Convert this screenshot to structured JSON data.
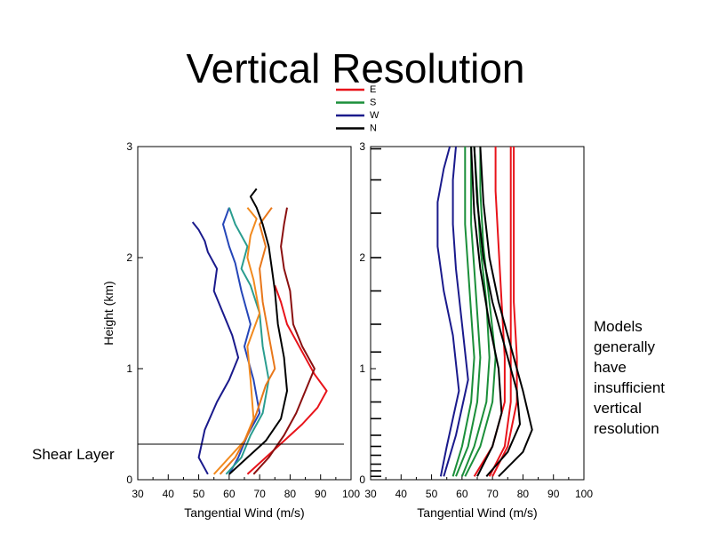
{
  "title": "Vertical Resolution",
  "legend": [
    {
      "label": "E",
      "color": "#e8131a"
    },
    {
      "label": "S",
      "color": "#1b8f3a"
    },
    {
      "label": "W",
      "color": "#1a1a8c"
    },
    {
      "label": "N",
      "color": "#000000"
    }
  ],
  "shear_layer_label": "Shear Layer",
  "models_note": [
    "Models",
    "generally",
    "have",
    "insufficient",
    "vertical",
    "resolution"
  ],
  "chart_data": [
    {
      "type": "line",
      "panel": "observations",
      "xlabel": "Tangential Wind (m/s)",
      "ylabel": "Height (km)",
      "xlim": [
        30,
        100
      ],
      "ylim": [
        0,
        3
      ],
      "xticks": [
        30,
        40,
        50,
        60,
        70,
        80,
        90,
        100
      ],
      "yticks": [
        0,
        1,
        2,
        3
      ],
      "shear_layer_height_km": 0.32,
      "series": [
        {
          "name": "dark blue profile",
          "color": "#1a1a8c",
          "x": [
            53,
            50,
            52,
            56,
            60,
            63,
            61,
            58,
            55,
            56,
            53,
            52,
            50,
            48
          ],
          "y": [
            0.05,
            0.2,
            0.45,
            0.7,
            0.9,
            1.1,
            1.3,
            1.5,
            1.7,
            1.9,
            2.05,
            2.15,
            2.25,
            2.32
          ]
        },
        {
          "name": "blue profile",
          "color": "#2546b8",
          "x": [
            60,
            63,
            66,
            70,
            68,
            65,
            67,
            64,
            62,
            60,
            58,
            60
          ],
          "y": [
            0.05,
            0.2,
            0.4,
            0.6,
            0.9,
            1.2,
            1.4,
            1.7,
            1.95,
            2.1,
            2.3,
            2.45
          ]
        },
        {
          "name": "teal profile",
          "color": "#2a9d8f",
          "x": [
            59,
            64,
            67,
            71,
            73,
            71,
            70,
            67,
            64,
            66,
            62,
            60
          ],
          "y": [
            0.05,
            0.2,
            0.4,
            0.6,
            0.9,
            1.2,
            1.5,
            1.75,
            1.9,
            2.1,
            2.3,
            2.45
          ]
        },
        {
          "name": "orange profile",
          "color": "#f28a1e",
          "x": [
            55,
            60,
            65,
            68,
            67,
            66,
            70,
            68,
            66,
            67,
            69,
            66
          ],
          "y": [
            0.05,
            0.2,
            0.35,
            0.55,
            0.9,
            1.2,
            1.5,
            1.8,
            2.0,
            2.2,
            2.35,
            2.45
          ]
        },
        {
          "name": "orange profile 2",
          "color": "#e8771a",
          "x": [
            57,
            62,
            66,
            69,
            72,
            75,
            73,
            71,
            70,
            72,
            70,
            74
          ],
          "y": [
            0.05,
            0.2,
            0.4,
            0.6,
            0.85,
            1.0,
            1.3,
            1.6,
            1.9,
            2.1,
            2.3,
            2.45
          ]
        },
        {
          "name": "red profile",
          "color": "#e8131a",
          "x": [
            66,
            72,
            78,
            84,
            89,
            92,
            88,
            86,
            83,
            79,
            77,
            75
          ],
          "y": [
            0.05,
            0.2,
            0.35,
            0.5,
            0.65,
            0.8,
            0.95,
            1.05,
            1.2,
            1.4,
            1.6,
            1.75
          ]
        },
        {
          "name": "dark red profile",
          "color": "#8b1010",
          "x": [
            68,
            73,
            78,
            82,
            85,
            88,
            84,
            81,
            80,
            78,
            77,
            78,
            79
          ],
          "y": [
            0.05,
            0.2,
            0.4,
            0.6,
            0.8,
            1.0,
            1.2,
            1.4,
            1.7,
            1.9,
            2.1,
            2.3,
            2.45
          ]
        },
        {
          "name": "black profile",
          "color": "#000000",
          "x": [
            60,
            66,
            72,
            77,
            79,
            78,
            76,
            75,
            74,
            73,
            71,
            69,
            67,
            69
          ],
          "y": [
            0.05,
            0.2,
            0.35,
            0.55,
            0.8,
            1.1,
            1.4,
            1.7,
            1.9,
            2.1,
            2.3,
            2.45,
            2.55,
            2.62
          ]
        }
      ]
    },
    {
      "type": "line",
      "panel": "models",
      "xlabel": "Tangential Wind (m/s)",
      "ylabel": "",
      "xlim": [
        30,
        100
      ],
      "ylim": [
        0,
        3
      ],
      "xticks": [
        30,
        40,
        50,
        60,
        70,
        80,
        90,
        100
      ],
      "yticks": [
        0,
        1,
        2,
        3
      ],
      "model_levels_km": [
        0.03,
        0.08,
        0.14,
        0.22,
        0.3,
        0.4,
        0.55,
        0.7,
        0.9,
        1.15,
        1.4,
        1.7,
        2.0,
        2.4,
        2.7,
        2.98
      ],
      "series": [
        {
          "name": "W model 1",
          "color": "#1a1a8c",
          "x": [
            53,
            55,
            59,
            57,
            54,
            52,
            52,
            54,
            56
          ],
          "y": [
            0.03,
            0.3,
            0.8,
            1.3,
            1.7,
            2.1,
            2.5,
            2.8,
            3.0
          ]
        },
        {
          "name": "W model 2",
          "color": "#1a1a8c",
          "x": [
            54,
            58,
            62,
            60,
            58,
            57,
            57,
            58
          ],
          "y": [
            0.03,
            0.4,
            0.9,
            1.4,
            1.9,
            2.3,
            2.7,
            3.0
          ]
        },
        {
          "name": "S model 1",
          "color": "#1b8f3a",
          "x": [
            57,
            60,
            63,
            64,
            63,
            62,
            61,
            61,
            61
          ],
          "y": [
            0.03,
            0.3,
            0.7,
            1.1,
            1.5,
            1.9,
            2.3,
            2.7,
            3.0
          ]
        },
        {
          "name": "S model 2",
          "color": "#1b8f3a",
          "x": [
            58,
            62,
            65,
            66,
            65,
            64,
            63,
            63,
            63
          ],
          "y": [
            0.03,
            0.3,
            0.7,
            1.1,
            1.5,
            1.9,
            2.3,
            2.7,
            3.0
          ]
        },
        {
          "name": "S model 3",
          "color": "#1b8f3a",
          "x": [
            60,
            64,
            68,
            69,
            68,
            66,
            65,
            64
          ],
          "y": [
            0.03,
            0.3,
            0.7,
            1.1,
            1.6,
            2.1,
            2.6,
            3.0
          ]
        },
        {
          "name": "S model 4",
          "color": "#1b8f3a",
          "x": [
            61,
            66,
            70,
            71,
            69,
            67,
            66,
            66
          ],
          "y": [
            0.03,
            0.3,
            0.7,
            1.1,
            1.6,
            2.1,
            2.6,
            3.0
          ]
        },
        {
          "name": "E model 1",
          "color": "#e8131a",
          "x": [
            69,
            74,
            76,
            76,
            76,
            76,
            76,
            76
          ],
          "y": [
            0.03,
            0.3,
            0.7,
            1.1,
            1.6,
            2.1,
            2.6,
            3.0
          ]
        },
        {
          "name": "E model 2",
          "color": "#e8131a",
          "x": [
            70,
            75,
            78,
            78,
            77,
            77,
            77,
            77
          ],
          "y": [
            0.03,
            0.3,
            0.7,
            1.1,
            1.6,
            2.1,
            2.6,
            3.0
          ]
        },
        {
          "name": "E model 3",
          "color": "#e8131a",
          "x": [
            64,
            70,
            74,
            74,
            73,
            72,
            71,
            71
          ],
          "y": [
            0.03,
            0.3,
            0.7,
            1.1,
            1.6,
            2.1,
            2.6,
            3.0
          ]
        },
        {
          "name": "N model 1",
          "color": "#000000",
          "x": [
            72,
            80,
            83,
            80,
            76,
            72,
            69,
            67,
            66
          ],
          "y": [
            0.03,
            0.25,
            0.45,
            0.8,
            1.2,
            1.6,
            2.0,
            2.5,
            3.0
          ]
        },
        {
          "name": "N model 2",
          "color": "#000000",
          "x": [
            68,
            75,
            79,
            78,
            74,
            70,
            67,
            65,
            64
          ],
          "y": [
            0.03,
            0.25,
            0.5,
            0.8,
            1.2,
            1.6,
            2.0,
            2.5,
            3.0
          ]
        },
        {
          "name": "N model 3",
          "color": "#000000",
          "x": [
            65,
            70,
            73,
            72,
            69,
            66,
            64,
            63
          ],
          "y": [
            0.03,
            0.3,
            0.6,
            1.0,
            1.4,
            1.9,
            2.4,
            3.0
          ]
        }
      ]
    }
  ]
}
